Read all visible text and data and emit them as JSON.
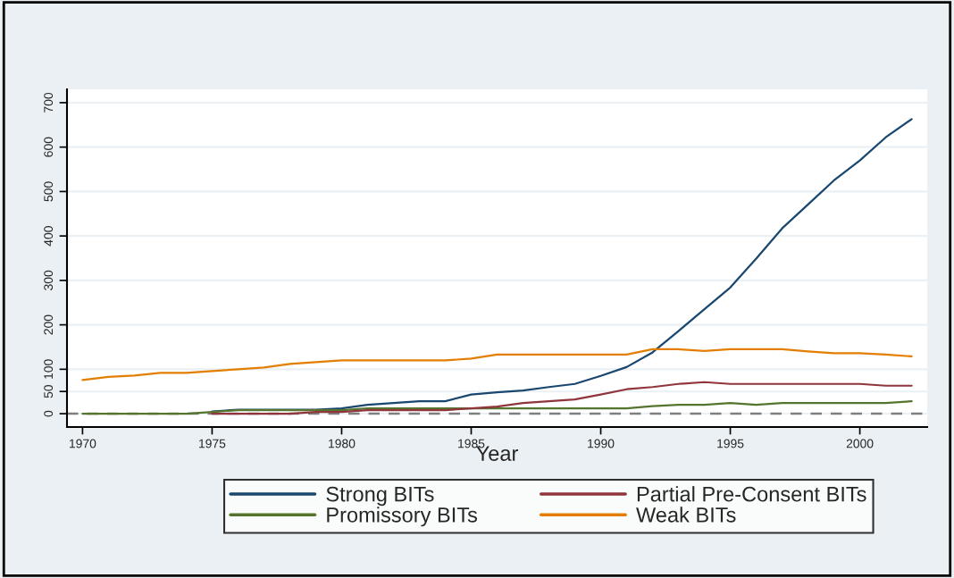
{
  "chart_data": {
    "type": "line",
    "xlabel": "Year",
    "x": [
      1970,
      1971,
      1972,
      1973,
      1974,
      1975,
      1976,
      1977,
      1978,
      1979,
      1980,
      1981,
      1982,
      1983,
      1984,
      1985,
      1986,
      1987,
      1988,
      1989,
      1990,
      1991,
      1992,
      1993,
      1994,
      1995,
      1996,
      1997,
      1998,
      1999,
      2000,
      2001,
      2002
    ],
    "series": [
      {
        "name": "Strong BITs",
        "color": "#1a476f",
        "values": [
          null,
          null,
          null,
          null,
          null,
          5,
          9,
          9,
          9,
          9,
          12,
          20,
          24,
          28,
          28,
          43,
          48,
          52,
          60,
          67,
          85,
          105,
          138,
          186,
          235,
          284,
          349,
          417,
          471,
          525,
          570,
          622,
          663
        ]
      },
      {
        "name": "Promissory BITs",
        "color": "#55752f",
        "values": [
          0,
          0,
          0,
          0,
          0,
          4,
          8,
          8,
          8,
          8,
          8,
          12,
          12,
          12,
          12,
          12,
          12,
          12,
          12,
          12,
          12,
          12,
          17,
          20,
          20,
          24,
          20,
          24,
          24,
          24,
          24,
          24,
          28
        ]
      },
      {
        "name": "Partial Pre-Consent BITs",
        "color": "#90353b",
        "values": [
          null,
          null,
          null,
          null,
          null,
          0,
          0,
          0,
          0,
          4,
          4,
          8,
          8,
          8,
          8,
          12,
          16,
          24,
          28,
          32,
          43,
          55,
          60,
          67,
          71,
          67,
          67,
          67,
          67,
          67,
          67,
          63,
          63
        ]
      },
      {
        "name": "Weak BITs",
        "color": "#e37e00",
        "values": [
          76,
          83,
          86,
          92,
          92,
          96,
          100,
          104,
          112,
          116,
          120,
          120,
          120,
          120,
          120,
          124,
          133,
          133,
          133,
          133,
          133,
          133,
          145,
          145,
          141,
          145,
          145,
          145,
          140,
          136,
          136,
          133,
          129
        ]
      }
    ],
    "xlim": [
      1969.4,
      2002.6
    ],
    "ylim": [
      -30,
      730
    ],
    "xticks": [
      1970,
      1975,
      1980,
      1985,
      1990,
      1995,
      2000
    ],
    "yticks": [
      0,
      50,
      100,
      200,
      300,
      400,
      500,
      600,
      700
    ],
    "ref_lines": [
      {
        "axis": "y",
        "value": 0,
        "color": "#7f7f7f",
        "line_style": "dashed"
      }
    ],
    "grid": "y",
    "legend": "bottom",
    "line_style": "solid",
    "marker": "none"
  }
}
